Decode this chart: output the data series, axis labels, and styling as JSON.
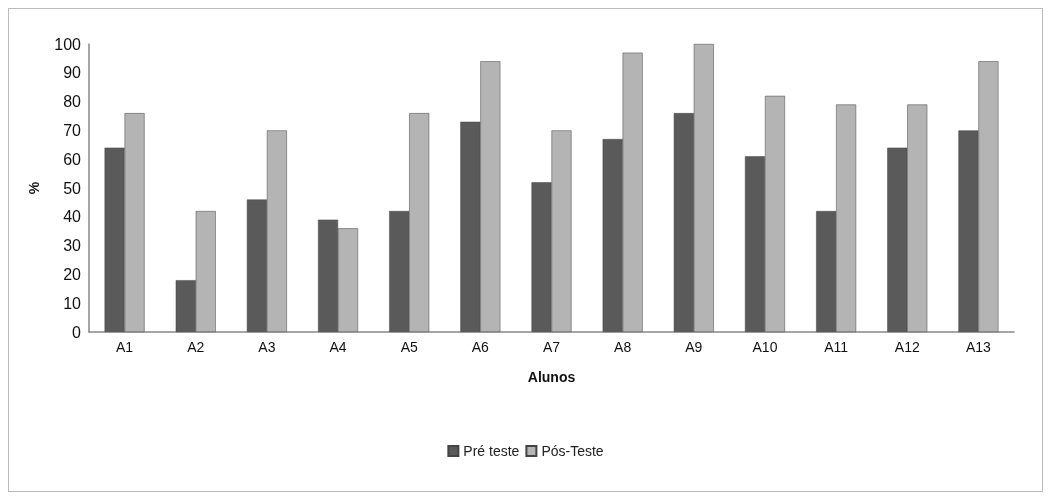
{
  "chart_data": {
    "type": "bar",
    "xlabel": "Alunos",
    "ylabel": "%",
    "categories": [
      "A1",
      "A2",
      "A3",
      "A4",
      "A5",
      "A6",
      "A7",
      "A8",
      "A9",
      "A10",
      "A11",
      "A12",
      "A13"
    ],
    "series": [
      {
        "name": "Pré teste",
        "color": "#5a5a5a",
        "values": [
          64,
          18,
          46,
          39,
          42,
          73,
          52,
          67,
          76,
          61,
          42,
          64,
          70
        ]
      },
      {
        "name": "Pós-Teste",
        "color": "#b4b4b4",
        "values": [
          76,
          42,
          70,
          36,
          76,
          94,
          70,
          97,
          100,
          82,
          79,
          79,
          94
        ]
      }
    ],
    "ylim": [
      0,
      100
    ],
    "yticks": [
      0,
      10,
      20,
      30,
      40,
      50,
      60,
      70,
      80,
      90,
      100
    ],
    "grid": false,
    "legend": "bottom"
  }
}
